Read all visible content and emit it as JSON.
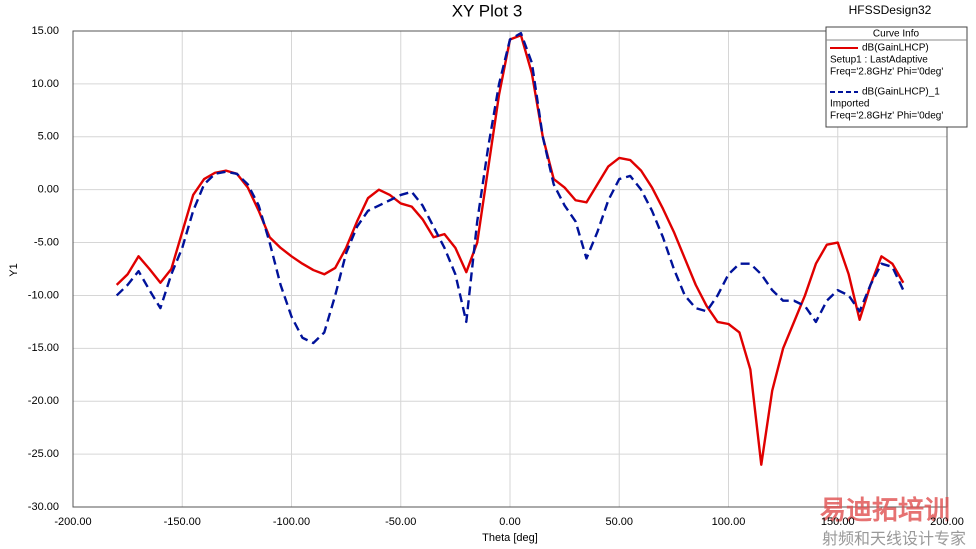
{
  "chart_data": {
    "type": "line",
    "title": "XY Plot 3",
    "design": "HFSSDesign32",
    "legend_title": "Curve Info",
    "xlabel": "Theta [deg]",
    "ylabel": "Y1",
    "x": [
      -180,
      -175,
      -170,
      -165,
      -160,
      -155,
      -150,
      -145,
      -140,
      -135,
      -130,
      -125,
      -120,
      -115,
      -110,
      -105,
      -100,
      -95,
      -90,
      -85,
      -80,
      -75,
      -70,
      -65,
      -60,
      -55,
      -50,
      -45,
      -40,
      -35,
      -30,
      -25,
      -20,
      -15,
      -10,
      -5,
      0,
      5,
      10,
      15,
      20,
      25,
      30,
      35,
      40,
      45,
      50,
      55,
      60,
      65,
      70,
      75,
      80,
      85,
      90,
      95,
      100,
      105,
      110,
      115,
      120,
      125,
      130,
      135,
      140,
      145,
      150,
      155,
      160,
      165,
      170,
      175,
      180
    ],
    "series": [
      {
        "name": "dB(GainLHCP)",
        "setup": "Setup1 : LastAdaptive",
        "info": "Freq='2.8GHz' Phi='0deg'",
        "color": "#e00000",
        "dash": false,
        "values": [
          -9,
          -8,
          -6.3,
          -7.5,
          -8.8,
          -7.5,
          -4,
          -0.5,
          1,
          1.6,
          1.8,
          1.5,
          0.2,
          -2,
          -4.5,
          -5.5,
          -6.3,
          -7,
          -7.6,
          -8,
          -7.4,
          -5.5,
          -3,
          -0.8,
          0,
          -0.5,
          -1.3,
          -1.6,
          -2.8,
          -4.5,
          -4.2,
          -5.5,
          -7.8,
          -5,
          2,
          9,
          14.2,
          14.6,
          11,
          5,
          1,
          0.2,
          -1,
          -1.2,
          0.5,
          2.2,
          3,
          2.8,
          1.8,
          0.2,
          -1.8,
          -4,
          -6.5,
          -9,
          -11,
          -12.5,
          -12.7,
          -13.5,
          -17,
          -26,
          -19,
          -15,
          -12.5,
          -10,
          -7,
          -5.2,
          -5,
          -8,
          -12.3,
          -9,
          -6.3,
          -7,
          -8.8
        ]
      },
      {
        "name": "dB(GainLHCP)_1",
        "setup": "Imported",
        "info": "Freq='2.8GHz' Phi='0deg'",
        "color": "#00129a",
        "dash": true,
        "values": [
          -10,
          -9,
          -7.7,
          -9.5,
          -11.2,
          -8,
          -5.5,
          -2,
          0.5,
          1.5,
          1.7,
          1.5,
          0.5,
          -1.5,
          -5,
          -9,
          -12,
          -14,
          -14.5,
          -13.5,
          -10,
          -6,
          -3.5,
          -2,
          -1.5,
          -1,
          -0.5,
          -0.2,
          -1.5,
          -3.5,
          -5.5,
          -8,
          -12.5,
          -3,
          4,
          10,
          14.2,
          14.8,
          12,
          5,
          0.5,
          -1.5,
          -3,
          -6.5,
          -4,
          -1,
          1,
          1.3,
          0,
          -2,
          -4.5,
          -7.5,
          -10,
          -11.2,
          -11.5,
          -10,
          -8,
          -7,
          -7,
          -8,
          -9.5,
          -10.5,
          -10.5,
          -11,
          -12.5,
          -10.5,
          -9.5,
          -10,
          -11.5,
          -9,
          -7,
          -7.3,
          -9.5
        ]
      }
    ],
    "xlim": [
      -200,
      200
    ],
    "xticks": [
      {
        "value": -200,
        "label": "-200.00"
      },
      {
        "value": -150,
        "label": "-150.00"
      },
      {
        "value": -100,
        "label": "-100.00"
      },
      {
        "value": -50,
        "label": "-50.00"
      },
      {
        "value": 0,
        "label": "0.00"
      },
      {
        "value": 50,
        "label": "50.00"
      },
      {
        "value": 100,
        "label": "100.00"
      },
      {
        "value": 150,
        "label": "150.00"
      },
      {
        "value": 200,
        "label": "200.00"
      }
    ],
    "ylim": [
      -30,
      15
    ],
    "yticks": [
      {
        "value": 15,
        "label": "15.00"
      },
      {
        "value": 10,
        "label": "10.00"
      },
      {
        "value": 5,
        "label": "5.00"
      },
      {
        "value": 0,
        "label": "0.00"
      },
      {
        "value": -5,
        "label": "-5.00"
      },
      {
        "value": -10,
        "label": "-10.00"
      },
      {
        "value": -15,
        "label": "-15.00"
      },
      {
        "value": -20,
        "label": "-20.00"
      },
      {
        "value": -25,
        "label": "-25.00"
      },
      {
        "value": -30,
        "label": "-30.00"
      }
    ],
    "grid": true
  },
  "watermark": {
    "logo": "易迪拓培训",
    "slogan": "射频和天线设计专家"
  }
}
